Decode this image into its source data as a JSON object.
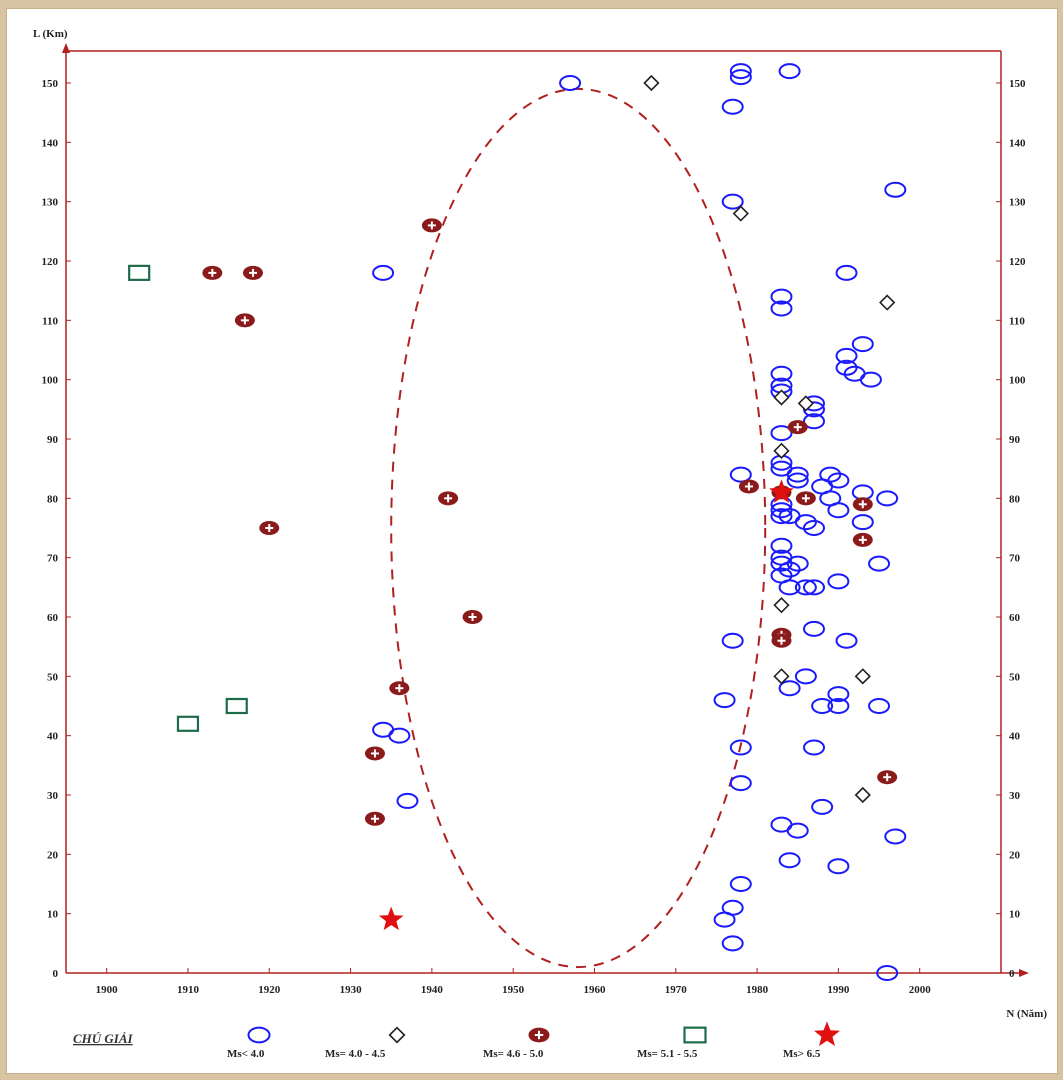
{
  "chart_data": {
    "type": "scatter",
    "title": "",
    "ylabel": "L (Km)",
    "xlabel": "N (Năm)",
    "xlim": [
      1895,
      2010
    ],
    "ylim": [
      0,
      150
    ],
    "xticks": [
      1900,
      1910,
      1920,
      1930,
      1940,
      1950,
      1960,
      1970,
      1980,
      1990,
      2000
    ],
    "xtick_labels": [
      "1900",
      "1910",
      "1920",
      "1930",
      "1940",
      "1950",
      "1960",
      "1970",
      "1980",
      "1990",
      "2000"
    ],
    "yticks": [
      0,
      10,
      20,
      30,
      40,
      50,
      60,
      70,
      80,
      90,
      100,
      110,
      120,
      130,
      140,
      150
    ],
    "ytick_labels": [
      "0",
      "10",
      "20",
      "30",
      "40",
      "50",
      "60",
      "70",
      "80",
      "90",
      "100",
      "110",
      "120",
      "130",
      "140",
      "150"
    ],
    "grid": false,
    "ellipse": {
      "center": [
        1958,
        75
      ],
      "rx": 23,
      "ry": 74,
      "style": "dashed",
      "color": "#b02020"
    },
    "series": [
      {
        "name": "Ms< 4.0",
        "marker": "circle",
        "color": "#1a1aff",
        "points": [
          [
            1957,
            150
          ],
          [
            1978,
            152
          ],
          [
            1978,
            151
          ],
          [
            1984,
            152
          ],
          [
            1977,
            146
          ],
          [
            1997,
            132
          ],
          [
            1977,
            130
          ],
          [
            1934,
            118
          ],
          [
            1991,
            118
          ],
          [
            1983,
            114
          ],
          [
            1983,
            112
          ],
          [
            1993,
            106
          ],
          [
            1991,
            104
          ],
          [
            1991,
            102
          ],
          [
            1992,
            101
          ],
          [
            1994,
            100
          ],
          [
            1983,
            101
          ],
          [
            1983,
            99
          ],
          [
            1983,
            98
          ],
          [
            1987,
            96
          ],
          [
            1987,
            95
          ],
          [
            1987,
            93
          ],
          [
            1983,
            91
          ],
          [
            1983,
            86
          ],
          [
            1983,
            85
          ],
          [
            1978,
            84
          ],
          [
            1985,
            84
          ],
          [
            1985,
            83
          ],
          [
            1989,
            84
          ],
          [
            1990,
            83
          ],
          [
            1988,
            82
          ],
          [
            1989,
            80
          ],
          [
            1990,
            78
          ],
          [
            1993,
            81
          ],
          [
            1996,
            80
          ],
          [
            1983,
            79
          ],
          [
            1983,
            78
          ],
          [
            1983,
            77
          ],
          [
            1984,
            77
          ],
          [
            1986,
            76
          ],
          [
            1987,
            75
          ],
          [
            1993,
            76
          ],
          [
            1983,
            72
          ],
          [
            1983,
            70
          ],
          [
            1983,
            69
          ],
          [
            1985,
            69
          ],
          [
            1984,
            68
          ],
          [
            1983,
            67
          ],
          [
            1995,
            69
          ],
          [
            1990,
            66
          ],
          [
            1984,
            65
          ],
          [
            1986,
            65
          ],
          [
            1987,
            65
          ],
          [
            1977,
            56
          ],
          [
            1987,
            58
          ],
          [
            1991,
            56
          ],
          [
            1986,
            50
          ],
          [
            1976,
            46
          ],
          [
            1984,
            48
          ],
          [
            1988,
            45
          ],
          [
            1990,
            47
          ],
          [
            1990,
            45
          ],
          [
            1995,
            45
          ],
          [
            1934,
            41
          ],
          [
            1936,
            40
          ],
          [
            1978,
            38
          ],
          [
            1987,
            38
          ],
          [
            1978,
            32
          ],
          [
            1937,
            29
          ],
          [
            1983,
            25
          ],
          [
            1985,
            24
          ],
          [
            1988,
            28
          ],
          [
            1997,
            23
          ],
          [
            1984,
            19
          ],
          [
            1990,
            18
          ],
          [
            1978,
            15
          ],
          [
            1977,
            11
          ],
          [
            1976,
            9
          ],
          [
            1977,
            5
          ],
          [
            1996,
            0
          ]
        ]
      },
      {
        "name": "Ms= 4.0 - 4.5",
        "marker": "diamond",
        "color": "#222222",
        "points": [
          [
            1967,
            150
          ],
          [
            1978,
            128
          ],
          [
            1996,
            113
          ],
          [
            1983,
            97
          ],
          [
            1986,
            96
          ],
          [
            1983,
            88
          ],
          [
            1983,
            62
          ],
          [
            1983,
            50
          ],
          [
            1993,
            50
          ],
          [
            1993,
            30
          ]
        ]
      },
      {
        "name": "Ms= 4.6 - 5.0",
        "marker": "plus",
        "color": "#8b1a1a",
        "points": [
          [
            1940,
            126
          ],
          [
            1913,
            118
          ],
          [
            1918,
            118
          ],
          [
            1917,
            110
          ],
          [
            1942,
            80
          ],
          [
            1920,
            75
          ],
          [
            1945,
            60
          ],
          [
            1936,
            48
          ],
          [
            1933,
            37
          ],
          [
            1933,
            26
          ],
          [
            1979,
            82
          ],
          [
            1985,
            92
          ],
          [
            1983,
            81
          ],
          [
            1986,
            80
          ],
          [
            1993,
            79
          ],
          [
            1993,
            73
          ],
          [
            1983,
            57
          ],
          [
            1983,
            56
          ],
          [
            1996,
            33
          ]
        ]
      },
      {
        "name": "Ms= 5.1 - 5.5",
        "marker": "square",
        "color": "#1e6b4a",
        "points": [
          [
            1904,
            118
          ],
          [
            1910,
            42
          ],
          [
            1916,
            45
          ]
        ]
      },
      {
        "name": "Ms> 6.5",
        "marker": "star",
        "color": "#e01010",
        "points": [
          [
            1935,
            9
          ],
          [
            1983,
            81
          ]
        ]
      }
    ],
    "legend": {
      "title": "CHÚ GIẢI",
      "placement": "bottom",
      "entries": [
        "Ms< 4.0",
        "Ms= 4.0 - 4.5",
        "Ms= 4.6 - 5.0",
        "Ms= 5.1 - 5.5",
        "Ms> 6.5"
      ]
    },
    "colors": {
      "axis": "#b02020",
      "text": "#222222",
      "frame_bg": "#d8c3a3"
    }
  }
}
